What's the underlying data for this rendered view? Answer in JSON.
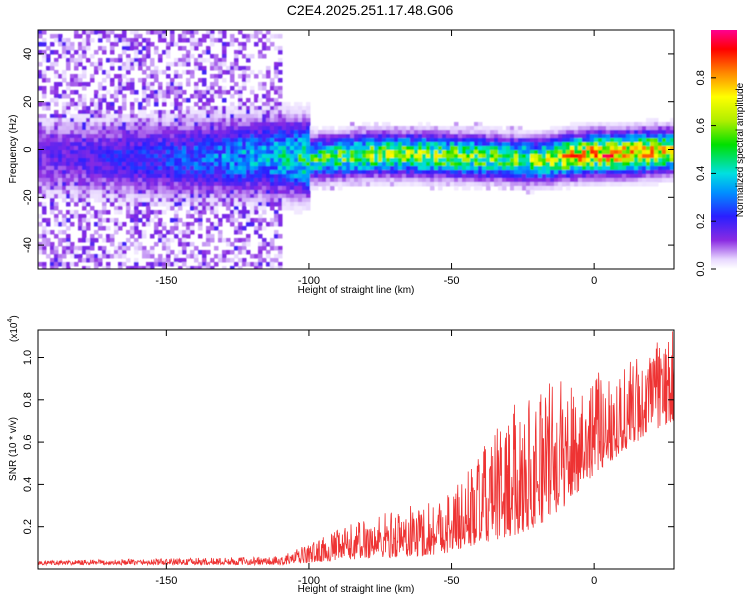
{
  "title": "C2E4.2025.251.17.48.G06",
  "chart_data": [
    {
      "type": "heatmap",
      "xlabel": "Height of straight line (km)",
      "ylabel": "Frequency (Hz)",
      "xlim": [
        -195,
        28
      ],
      "ylim": [
        -50,
        50
      ],
      "x_ticks": [
        -150,
        -100,
        -50,
        0
      ],
      "y_ticks": [
        -40,
        -20,
        0,
        20,
        40
      ],
      "ridge": {
        "x": [
          -195,
          -150,
          -110,
          -100,
          -75,
          -50,
          -30,
          -20,
          -10,
          0,
          10,
          20,
          28
        ],
        "center_freq": [
          -2,
          -3,
          -2,
          -3,
          -1,
          -2,
          -3,
          -4,
          -2,
          -1,
          -1,
          0,
          0
        ],
        "amplitude": [
          0.15,
          0.25,
          0.4,
          0.5,
          0.6,
          0.6,
          0.55,
          0.6,
          0.75,
          0.8,
          0.8,
          0.75,
          0.7
        ]
      },
      "colorbar": {
        "label": "Normalized spectral amplitude",
        "ticks": [
          0.0,
          0.2,
          0.4,
          0.6,
          0.8
        ],
        "range": [
          0,
          1
        ]
      }
    },
    {
      "type": "line",
      "xlabel": "Height of straight line (km)",
      "ylabel": "SNR (10 * v/v)",
      "exponent_label": "(x10",
      "exponent_power": "4",
      "xlim": [
        -195,
        28
      ],
      "ylim": [
        0,
        1.13
      ],
      "x_ticks": [
        -150,
        -100,
        -50,
        0
      ],
      "y_ticks": [
        0.2,
        0.4,
        0.6,
        0.8,
        1.0
      ],
      "color": "#ee3333",
      "envelope": {
        "x": [
          -195,
          -150,
          -110,
          -100,
          -80,
          -60,
          -50,
          -40,
          -30,
          -20,
          -10,
          0,
          10,
          20,
          28
        ],
        "low": [
          0.02,
          0.02,
          0.02,
          0.03,
          0.05,
          0.06,
          0.08,
          0.12,
          0.15,
          0.2,
          0.3,
          0.45,
          0.55,
          0.65,
          0.7
        ],
        "high": [
          0.04,
          0.05,
          0.06,
          0.12,
          0.25,
          0.32,
          0.38,
          0.55,
          0.75,
          0.88,
          0.9,
          0.92,
          0.98,
          1.05,
          1.13
        ]
      }
    }
  ]
}
